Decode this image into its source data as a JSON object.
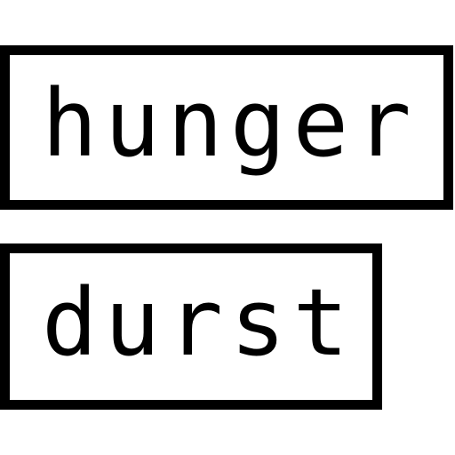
{
  "logo": {
    "line1": "hunger",
    "line2": "durst"
  },
  "colors": {
    "foreground": "#000000",
    "background": "#ffffff"
  }
}
